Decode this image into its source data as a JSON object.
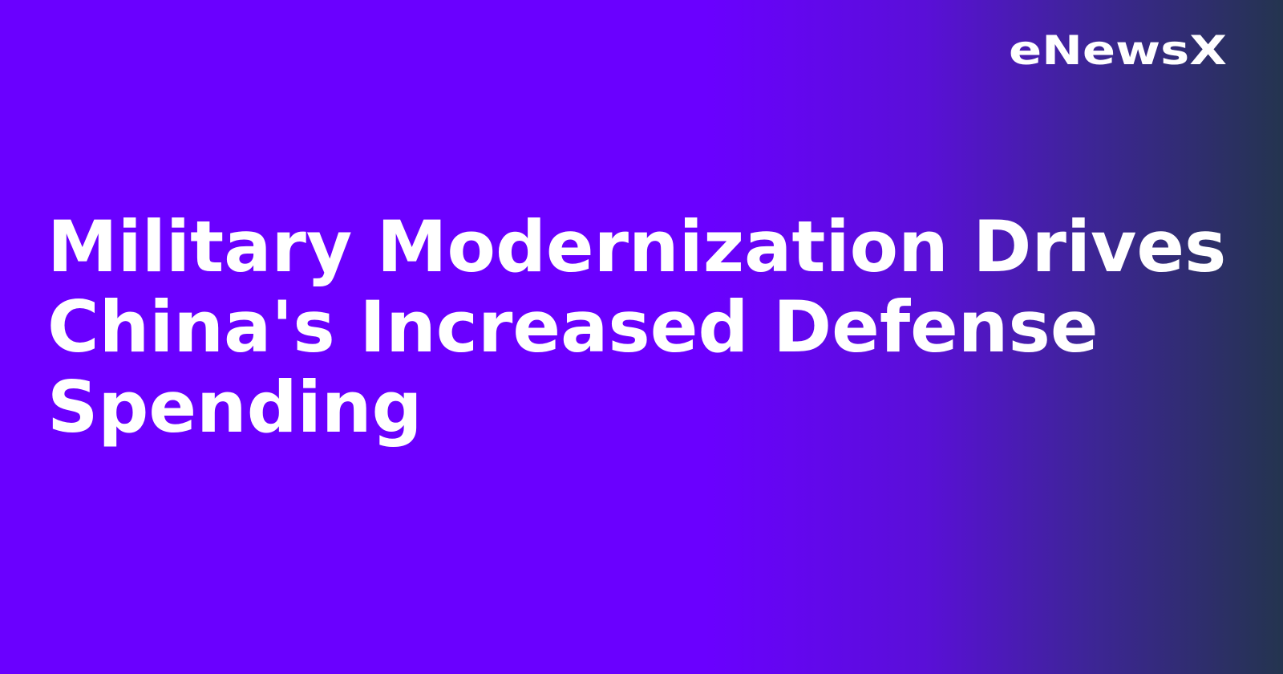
{
  "brand": {
    "logo_text": "eNewsX"
  },
  "headline": "Military Modernization Drives China's Increased Defense Spending",
  "colors": {
    "background_start": "#6a00ff",
    "background_end": "#24344f",
    "text": "#ffffff"
  }
}
